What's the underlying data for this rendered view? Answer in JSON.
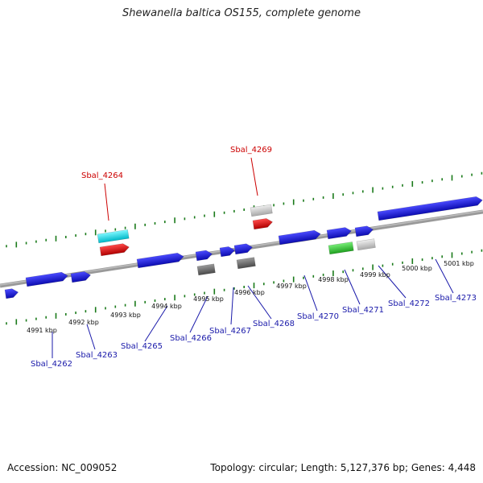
{
  "title": "Shewanella baltica OS155, complete genome",
  "footer": {
    "accession": "Accession: NC_009052",
    "summary": "Topology: circular; Length: 5,127,376 bp; Genes: 4,448"
  },
  "colors": {
    "forward_gene": "#1a1adc",
    "highlight_label": "#cc0000",
    "normal_label": "#1a1aaa",
    "tick": "#1a7a1a",
    "backbone": "#888888",
    "cyan": "#00e5ee",
    "red": "#ee0000",
    "light_gray": "#c8c8c8",
    "dark_gray": "#6a6a6a",
    "green": "#33cc33"
  },
  "kbp_labels": [
    "4991 kbp",
    "4992 kbp",
    "4993 kbp",
    "4994 kbp",
    "4995 kbp",
    "4996 kbp",
    "4997 kbp",
    "4998 kbp",
    "4999 kbp",
    "5000 kbp",
    "5001 kbp"
  ],
  "gene_labels": [
    {
      "name": "Sbal_4262",
      "highlight": false
    },
    {
      "name": "Sbal_4263",
      "highlight": false
    },
    {
      "name": "Sbal_4264",
      "highlight": true
    },
    {
      "name": "Sbal_4265",
      "highlight": false
    },
    {
      "name": "Sbal_4266",
      "highlight": false
    },
    {
      "name": "Sbal_4267",
      "highlight": false
    },
    {
      "name": "Sbal_4268",
      "highlight": false
    },
    {
      "name": "Sbal_4269",
      "highlight": true
    },
    {
      "name": "Sbal_4270",
      "highlight": false
    },
    {
      "name": "Sbal_4271",
      "highlight": false
    },
    {
      "name": "Sbal_4272",
      "highlight": false
    },
    {
      "name": "Sbal_4273",
      "highlight": false
    }
  ]
}
